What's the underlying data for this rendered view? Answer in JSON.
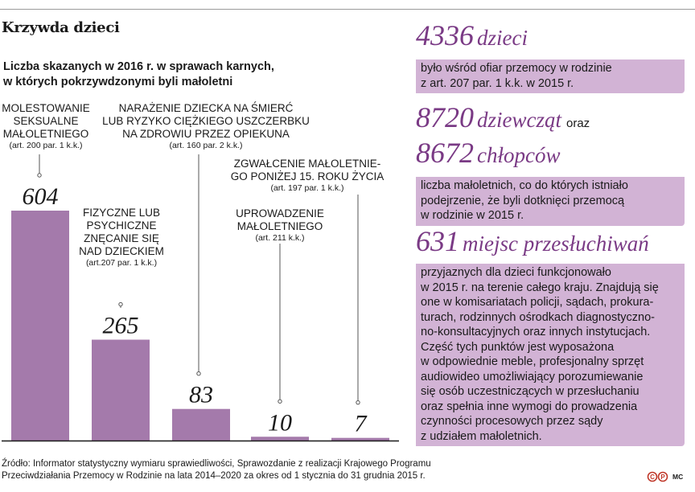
{
  "header": {
    "title": "Krzywda dzieci",
    "subtitle_lines": [
      "Liczba skazanych w 2016 r. w sprawach karnych,",
      "w których pokrzywdzonymi byli małoletni"
    ]
  },
  "chart_data": {
    "type": "bar",
    "title": "Liczba skazanych w 2016 r. w sprawach karnych, w których pokrzywdzonymi byli małoletni",
    "categories": [
      "MOLESTOWANIE SEKSUALNE MAŁOLETNIEGO",
      "FIZYCZNE LUB PSYCHICZNE ZNĘCANIE SIĘ NAD DZIECKIEM",
      "NARAŻENIE DZIECKA NA ŚMIERĆ LUB RYZYKO CIĘŻKIEGO USZCZERBKU NA ZDROWIU PRZEZ OPIEKUNA",
      "UPROWADZENIE MAŁOLETNIEGO",
      "ZGWAŁCENIE MAŁOLETNIEGO PONIŻEJ 15. ROKU ŻYCIA"
    ],
    "values": [
      604,
      265,
      83,
      10,
      7
    ],
    "value_labels": [
      "604",
      "265",
      "83",
      "10",
      "7"
    ],
    "ylim": [
      0,
      604
    ],
    "color": "#a47aab",
    "grid": false,
    "label_blocks": [
      {
        "lines": [
          "MOLESTOWANIE",
          "SEKSUALNE",
          "MAŁOLETNIEGO"
        ],
        "art": "(art.  200 par. 1 k.k.)"
      },
      {
        "lines": [
          "FIZYCZNE LUB",
          "PSYCHICZNE",
          "ZNĘCANIE SIĘ",
          "NAD DZIECKIEM"
        ],
        "art": "(art.207 par. 1 k.k.)"
      },
      {
        "lines": [
          "NARAŻENIE DZIECKA NA ŚMIERĆ",
          "LUB RYZYKO CIĘŻKIEGO USZCZERBKU",
          "NA ZDROWIU PRZEZ OPIEKUNA"
        ],
        "art": "(art. 160 par. 2 k.k.)"
      },
      {
        "lines": [
          "UPROWADZENIE",
          "MAŁOLETNIEGO"
        ],
        "art": "(art. 211 k.k.)"
      },
      {
        "lines": [
          "ZGWAŁCENIE MAŁOLETNIE-",
          "GO PONIŻEJ 15. ROKU ŻYCIA"
        ],
        "art": "(art. 197 par. 1 k.k.)"
      }
    ]
  },
  "facts": [
    {
      "number": "4336",
      "word": "dzieci",
      "lines": [
        "było wśród ofiar przemocy w rodzinie",
        "z art. 207 par. 1 k.k. w 2015 r."
      ]
    },
    {
      "number": "8720",
      "word": "dziewcząt",
      "connector": "oraz",
      "number2": "8672",
      "word2": "chłopców",
      "lines": [
        "liczba małoletnich, co do których istniało",
        "podejrzenie, że byli dotknięci przemocą",
        "w rodzinie w 2015 r."
      ]
    },
    {
      "number": "631",
      "word": "miejsc przesłuchiwań",
      "lines": [
        "przyjaznych dla dzieci funkcjonowało",
        "w 2015 r. na terenie całego kraju. Znajdują się",
        "one w komisariatach policji, sądach, prokura-",
        "turach, rodzinnych ośrodkach diagnostyczno-",
        "no-konsultacyjnych oraz innych instytucjach.",
        "Część tych punktów jest wyposażona",
        "w odpowiednie meble, profesjonalny sprzęt",
        "audiowideo umożliwiający porozumiewanie",
        "się osób uczestniczących w przesłuchaniu",
        "oraz spełnia inne wymogi do prowadzenia",
        "czynności procesowych przez sądy",
        "z udziałem małoletnich."
      ]
    }
  ],
  "source_lines": [
    "Źródło: Informator statystyczny wymiaru sprawiedliwości, Sprawozdanie z realizacji Krajowego Programu",
    "Przeciwdziałania Przemocy w Rodzinie na lata 2014–2020 za okres od 1 stycznia do 31 grudnia 2015 r."
  ],
  "credit": "MC",
  "colors": {
    "accent": "#7a3a85",
    "bar": "#a47aab",
    "box": "#d2b3d5"
  }
}
